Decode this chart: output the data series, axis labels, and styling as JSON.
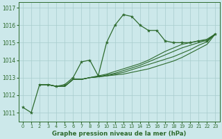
{
  "title": "Graphe pression niveau de la mer (hPa)",
  "background_color": "#cce8ea",
  "grid_color": "#a8cccc",
  "line_color": "#2d6a2d",
  "xlim": [
    -0.5,
    23.5
  ],
  "ylim": [
    1010.5,
    1017.3
  ],
  "yticks": [
    1011,
    1012,
    1013,
    1014,
    1015,
    1016,
    1017
  ],
  "xticks": [
    0,
    1,
    2,
    3,
    4,
    5,
    6,
    7,
    8,
    9,
    10,
    11,
    12,
    13,
    14,
    15,
    16,
    17,
    18,
    19,
    20,
    21,
    22,
    23
  ],
  "series_main": {
    "x": [
      0,
      1,
      2,
      3,
      4,
      5,
      6,
      7,
      8,
      9,
      10,
      11,
      12,
      13,
      14,
      15,
      16,
      17,
      18,
      19,
      20,
      21,
      22,
      23
    ],
    "y": [
      1011.3,
      1011.0,
      1012.6,
      1012.6,
      1012.5,
      1012.6,
      1013.0,
      1013.9,
      1014.0,
      1013.1,
      1015.0,
      1016.0,
      1016.6,
      1016.5,
      1016.0,
      1015.7,
      1015.7,
      1015.1,
      1015.0,
      1015.0,
      1015.0,
      1015.1,
      1015.1,
      1015.5
    ]
  },
  "series_forecast": [
    {
      "x": [
        2,
        3,
        4,
        5,
        6,
        7,
        8,
        9,
        10,
        11,
        12,
        13,
        14,
        15,
        16,
        17,
        18,
        19,
        20,
        21,
        22,
        23
      ],
      "y": [
        1012.6,
        1012.6,
        1012.5,
        1012.5,
        1012.9,
        1012.9,
        1013.0,
        1013.05,
        1013.1,
        1013.15,
        1013.2,
        1013.3,
        1013.4,
        1013.5,
        1013.65,
        1013.8,
        1013.95,
        1014.15,
        1014.4,
        1014.65,
        1014.9,
        1015.5
      ]
    },
    {
      "x": [
        2,
        3,
        4,
        5,
        6,
        7,
        8,
        9,
        10,
        11,
        12,
        13,
        14,
        15,
        16,
        17,
        18,
        19,
        20,
        21,
        22,
        23
      ],
      "y": [
        1012.6,
        1012.6,
        1012.5,
        1012.5,
        1012.9,
        1012.9,
        1013.0,
        1013.05,
        1013.1,
        1013.2,
        1013.3,
        1013.45,
        1013.6,
        1013.75,
        1013.9,
        1014.05,
        1014.2,
        1014.4,
        1014.6,
        1014.85,
        1015.05,
        1015.5
      ]
    },
    {
      "x": [
        2,
        3,
        4,
        5,
        6,
        7,
        8,
        9,
        10,
        11,
        12,
        13,
        14,
        15,
        16,
        17,
        18,
        19,
        20,
        21,
        22,
        23
      ],
      "y": [
        1012.6,
        1012.6,
        1012.5,
        1012.5,
        1012.9,
        1012.9,
        1013.0,
        1013.05,
        1013.15,
        1013.25,
        1013.4,
        1013.55,
        1013.7,
        1013.9,
        1014.1,
        1014.3,
        1014.5,
        1014.7,
        1014.85,
        1015.0,
        1015.15,
        1015.5
      ]
    },
    {
      "x": [
        2,
        3,
        4,
        5,
        6,
        7,
        8,
        9,
        10,
        11,
        12,
        13,
        14,
        15,
        16,
        17,
        18,
        19,
        20,
        21,
        22,
        23
      ],
      "y": [
        1012.6,
        1012.6,
        1012.5,
        1012.5,
        1012.9,
        1012.9,
        1013.0,
        1013.1,
        1013.2,
        1013.35,
        1013.5,
        1013.65,
        1013.8,
        1014.0,
        1014.25,
        1014.5,
        1014.7,
        1014.9,
        1015.0,
        1015.1,
        1015.2,
        1015.5
      ]
    }
  ]
}
